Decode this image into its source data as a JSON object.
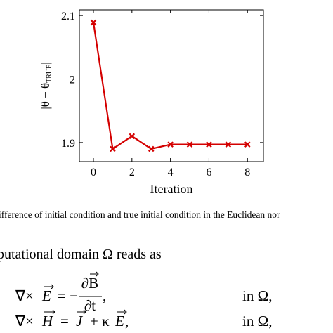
{
  "chart_data": {
    "type": "line",
    "x_label": "Iteration",
    "y_label_parts": [
      "|θ − θ",
      "TRUE",
      "|"
    ],
    "x": [
      0,
      1,
      2,
      3,
      4,
      5,
      6,
      7,
      8
    ],
    "values": [
      2.089,
      1.89,
      1.91,
      1.89,
      1.897,
      1.897,
      1.897,
      1.897,
      1.897
    ],
    "color": "#d40000",
    "xlim": [
      -0.73,
      8.83
    ],
    "xticks": [
      0,
      2,
      4,
      6,
      8
    ],
    "ylim": [
      1.87,
      2.109
    ],
    "yticks": [
      1.9,
      2,
      2.1
    ]
  },
  "caption": "ifference of initial condition and true initial condition in the Euclidean nor",
  "body_text": "putational domain Ω reads as",
  "equations": [
    {
      "op": "∇×",
      "var": "E",
      "rel": "= −",
      "num": "∂B",
      "den": "∂t",
      "end": ",",
      "domain": "in Ω,"
    },
    {
      "op": "∇×",
      "var": "H",
      "eq": "=",
      "j": "J",
      "plus": "+ κ",
      "e": "E",
      "end": ",",
      "domain": "in Ω,"
    }
  ]
}
